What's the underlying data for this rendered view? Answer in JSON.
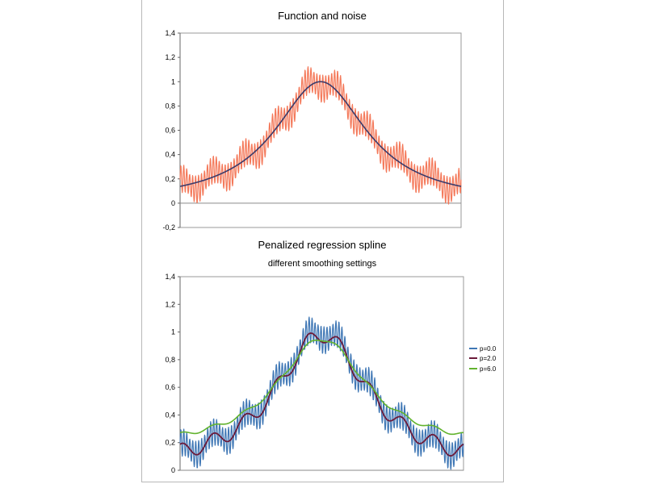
{
  "chart_data": [
    {
      "type": "line",
      "title": "Function and noise",
      "subtitle": "",
      "ylim": [
        -0.2,
        1.4
      ],
      "yticks": [
        "-0,2",
        "0",
        "0,2",
        "0,4",
        "0,6",
        "0,8",
        "1",
        "1,2",
        "1,4"
      ],
      "grid": false,
      "legend": "none",
      "series": [
        {
          "color": "#f4795a",
          "role": "noisy",
          "amplitude": 0.17,
          "oscillation": "fast"
        },
        {
          "color": "#3b3b6b",
          "role": "function",
          "peak": 1.0,
          "ends": 0.17
        }
      ]
    },
    {
      "type": "line",
      "title": "Penalized regression spline",
      "subtitle": "different smoothing settings",
      "ylim": [
        0,
        1.4
      ],
      "yticks": [
        "0",
        "0,2",
        "0,4",
        "0,6",
        "0,8",
        "1",
        "1,2",
        "1,4"
      ],
      "grid": false,
      "legend": "right",
      "series": [
        {
          "name": "p=0.0",
          "color": "#3f77b5"
        },
        {
          "name": "p=2.0",
          "color": "#6b1a3a"
        },
        {
          "name": "p=6.0",
          "color": "#62b32e"
        }
      ]
    }
  ]
}
